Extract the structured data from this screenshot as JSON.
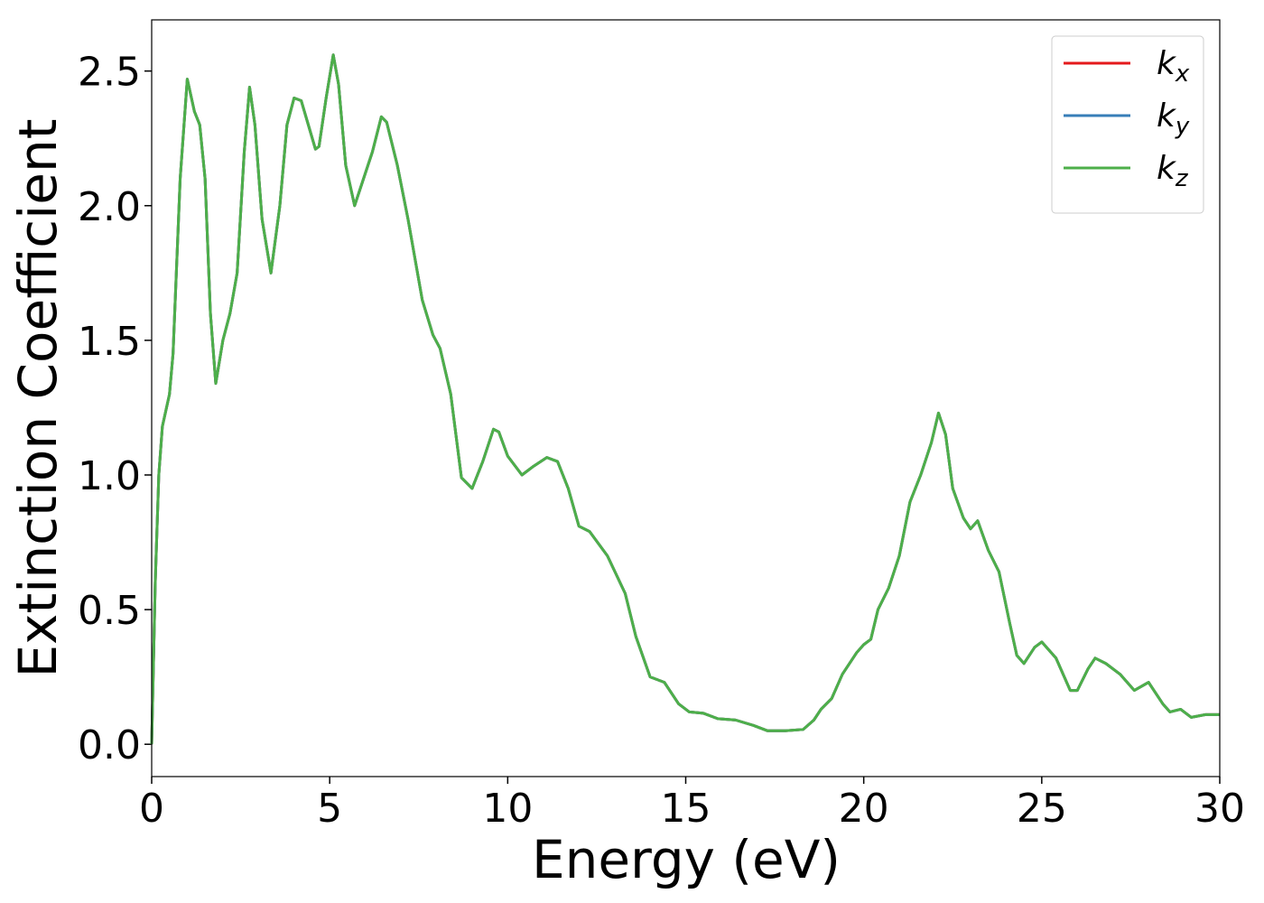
{
  "chart_data": {
    "type": "line",
    "xlabel": "Energy (eV)",
    "ylabel": "Extinction Coefficient",
    "x": [
      0,
      0.1,
      0.2,
      0.3,
      0.5,
      0.6,
      0.8,
      1.0,
      1.2,
      1.35,
      1.5,
      1.65,
      1.8,
      2.0,
      2.2,
      2.4,
      2.6,
      2.75,
      2.9,
      3.1,
      3.35,
      3.6,
      3.8,
      4.0,
      4.2,
      4.4,
      4.6,
      4.7,
      4.9,
      5.1,
      5.25,
      5.45,
      5.7,
      6.0,
      6.2,
      6.45,
      6.6,
      6.9,
      7.2,
      7.6,
      7.9,
      8.1,
      8.4,
      8.7,
      9.0,
      9.3,
      9.6,
      9.75,
      10.0,
      10.4,
      10.7,
      11.1,
      11.4,
      11.7,
      12.0,
      12.3,
      12.8,
      13.3,
      13.6,
      14.0,
      14.2,
      14.4,
      14.8,
      15.1,
      15.5,
      15.9,
      16.4,
      16.9,
      17.3,
      17.8,
      18.3,
      18.6,
      18.8,
      19.1,
      19.4,
      19.8,
      20.0,
      20.2,
      20.4,
      20.7,
      21.0,
      21.3,
      21.6,
      21.9,
      22.1,
      22.3,
      22.5,
      22.8,
      23.0,
      23.2,
      23.5,
      23.8,
      24.1,
      24.3,
      24.5,
      24.8,
      25.0,
      25.4,
      25.8,
      26.0,
      26.3,
      26.5,
      26.8,
      27.2,
      27.6,
      28.0,
      28.4,
      28.6,
      28.9,
      29.2,
      29.6,
      30.0
    ],
    "series": [
      {
        "name": "kx",
        "color": "#e41a1c",
        "values": [
          0,
          0.6,
          1.0,
          1.18,
          1.3,
          1.45,
          2.1,
          2.47,
          2.35,
          2.3,
          2.1,
          1.6,
          1.34,
          1.5,
          1.6,
          1.75,
          2.2,
          2.44,
          2.3,
          1.95,
          1.75,
          2.0,
          2.3,
          2.4,
          2.39,
          2.3,
          2.21,
          2.22,
          2.4,
          2.56,
          2.45,
          2.15,
          2.0,
          2.12,
          2.2,
          2.33,
          2.31,
          2.15,
          1.95,
          1.65,
          1.52,
          1.47,
          1.3,
          0.99,
          0.95,
          1.05,
          1.17,
          1.16,
          1.07,
          1.0,
          1.03,
          1.065,
          1.05,
          0.95,
          0.81,
          0.79,
          0.7,
          0.56,
          0.4,
          0.25,
          0.24,
          0.23,
          0.15,
          0.12,
          0.115,
          0.095,
          0.09,
          0.07,
          0.05,
          0.05,
          0.055,
          0.09,
          0.13,
          0.17,
          0.26,
          0.34,
          0.37,
          0.39,
          0.5,
          0.58,
          0.7,
          0.9,
          1.0,
          1.12,
          1.23,
          1.15,
          0.95,
          0.84,
          0.8,
          0.83,
          0.72,
          0.64,
          0.45,
          0.33,
          0.3,
          0.36,
          0.38,
          0.32,
          0.2,
          0.2,
          0.28,
          0.32,
          0.3,
          0.26,
          0.2,
          0.23,
          0.15,
          0.12,
          0.13,
          0.1,
          0.11,
          0.11
        ]
      },
      {
        "name": "ky",
        "color": "#377eb8",
        "values": [
          0,
          0.6,
          1.0,
          1.18,
          1.3,
          1.45,
          2.1,
          2.47,
          2.35,
          2.3,
          2.1,
          1.6,
          1.34,
          1.5,
          1.6,
          1.75,
          2.2,
          2.44,
          2.3,
          1.95,
          1.75,
          2.0,
          2.3,
          2.4,
          2.39,
          2.3,
          2.21,
          2.22,
          2.4,
          2.56,
          2.45,
          2.15,
          2.0,
          2.12,
          2.2,
          2.33,
          2.31,
          2.15,
          1.95,
          1.65,
          1.52,
          1.47,
          1.3,
          0.99,
          0.95,
          1.05,
          1.17,
          1.16,
          1.07,
          1.0,
          1.03,
          1.065,
          1.05,
          0.95,
          0.81,
          0.79,
          0.7,
          0.56,
          0.4,
          0.25,
          0.24,
          0.23,
          0.15,
          0.12,
          0.115,
          0.095,
          0.09,
          0.07,
          0.05,
          0.05,
          0.055,
          0.09,
          0.13,
          0.17,
          0.26,
          0.34,
          0.37,
          0.39,
          0.5,
          0.58,
          0.7,
          0.9,
          1.0,
          1.12,
          1.23,
          1.15,
          0.95,
          0.84,
          0.8,
          0.83,
          0.72,
          0.64,
          0.45,
          0.33,
          0.3,
          0.36,
          0.38,
          0.32,
          0.2,
          0.2,
          0.28,
          0.32,
          0.3,
          0.26,
          0.2,
          0.23,
          0.15,
          0.12,
          0.13,
          0.1,
          0.11,
          0.11
        ]
      },
      {
        "name": "kz",
        "color": "#4daf4a",
        "values": [
          0,
          0.6,
          1.0,
          1.18,
          1.3,
          1.45,
          2.1,
          2.47,
          2.35,
          2.3,
          2.1,
          1.6,
          1.34,
          1.5,
          1.6,
          1.75,
          2.2,
          2.44,
          2.3,
          1.95,
          1.75,
          2.0,
          2.3,
          2.4,
          2.39,
          2.3,
          2.21,
          2.22,
          2.4,
          2.56,
          2.45,
          2.15,
          2.0,
          2.12,
          2.2,
          2.33,
          2.31,
          2.15,
          1.95,
          1.65,
          1.52,
          1.47,
          1.3,
          0.99,
          0.95,
          1.05,
          1.17,
          1.16,
          1.07,
          1.0,
          1.03,
          1.065,
          1.05,
          0.95,
          0.81,
          0.79,
          0.7,
          0.56,
          0.4,
          0.25,
          0.24,
          0.23,
          0.15,
          0.12,
          0.115,
          0.095,
          0.09,
          0.07,
          0.05,
          0.05,
          0.055,
          0.09,
          0.13,
          0.17,
          0.26,
          0.34,
          0.37,
          0.39,
          0.5,
          0.58,
          0.7,
          0.9,
          1.0,
          1.12,
          1.23,
          1.15,
          0.95,
          0.84,
          0.8,
          0.83,
          0.72,
          0.64,
          0.45,
          0.33,
          0.3,
          0.36,
          0.38,
          0.32,
          0.2,
          0.2,
          0.28,
          0.32,
          0.3,
          0.26,
          0.2,
          0.23,
          0.15,
          0.12,
          0.13,
          0.1,
          0.11,
          0.11
        ]
      }
    ],
    "xlim": [
      0,
      30
    ],
    "xticks": [
      0,
      5,
      10,
      15,
      20,
      25,
      30
    ],
    "ylim": [
      -0.12,
      2.69
    ],
    "yticks": [
      {
        "value": 0,
        "label": "0.0"
      },
      0.5,
      {
        "value": 1,
        "label": "1.0"
      },
      1.5,
      {
        "value": 2,
        "label": "2.0"
      },
      2.5
    ],
    "legend": "upper right"
  }
}
